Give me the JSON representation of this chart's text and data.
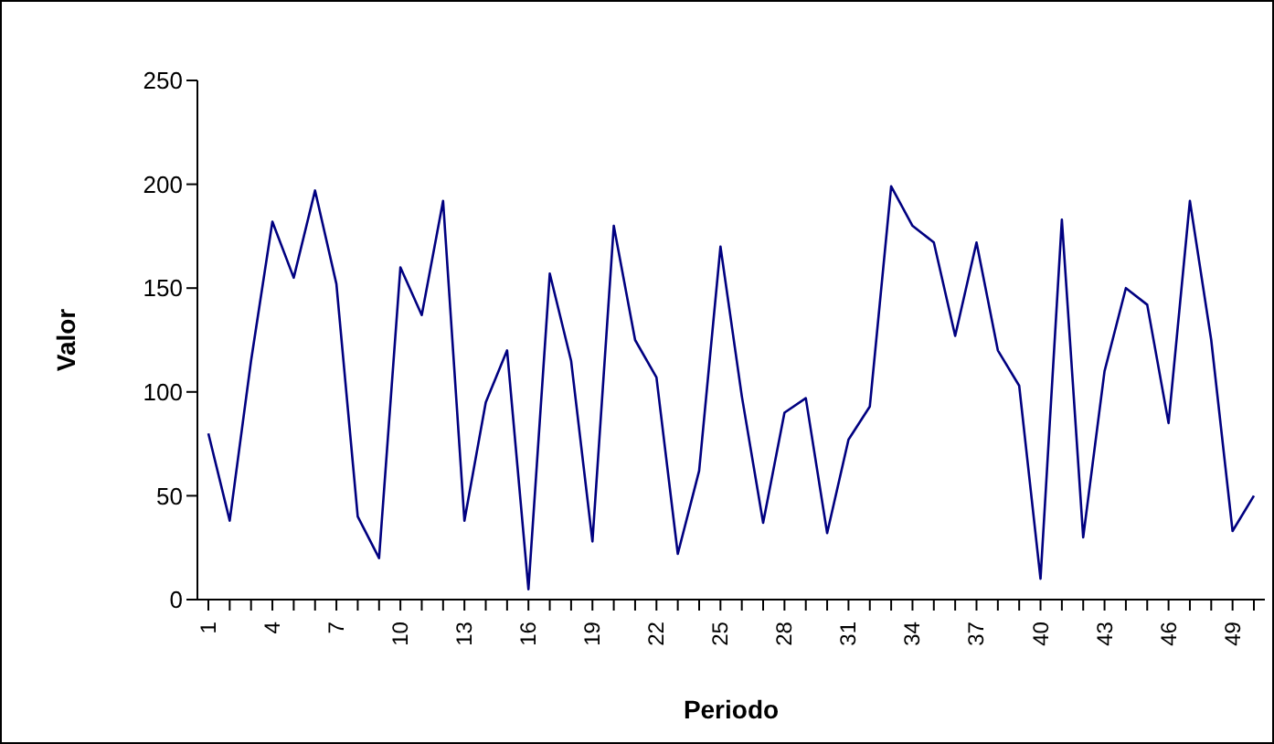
{
  "chart_data": {
    "type": "line",
    "xlabel": "Periodo",
    "ylabel": "Valor",
    "categories": [
      "1",
      null,
      null,
      "4",
      null,
      null,
      "7",
      null,
      null,
      "10",
      null,
      null,
      "13",
      null,
      null,
      "16",
      null,
      null,
      "19",
      null,
      null,
      "22",
      null,
      null,
      "25",
      null,
      null,
      "28",
      null,
      null,
      "31",
      null,
      null,
      "34",
      null,
      null,
      "37",
      null,
      null,
      "40",
      null,
      null,
      "43",
      null,
      null,
      "46",
      null,
      null,
      "49",
      null
    ],
    "series": [
      {
        "color": "#000080",
        "values": [
          80,
          38,
          115,
          182,
          155,
          197,
          152,
          40,
          20,
          160,
          137,
          192,
          38,
          95,
          120,
          5,
          157,
          115,
          28,
          180,
          125,
          107,
          22,
          62,
          170,
          98,
          37,
          90,
          97,
          32,
          77,
          93,
          199,
          180,
          172,
          127,
          172,
          120,
          103,
          10,
          183,
          30,
          110,
          150,
          142,
          85,
          192,
          125,
          33,
          50
        ]
      }
    ],
    "ylim": [
      0,
      250
    ],
    "yticks": [
      0,
      50,
      100,
      150,
      200,
      250
    ],
    "grid": false,
    "legend": false,
    "marker": "none",
    "line_style": "solid"
  }
}
